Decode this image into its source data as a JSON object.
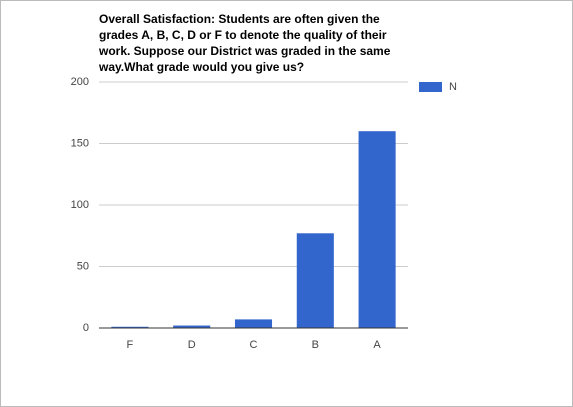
{
  "chart_data": {
    "type": "bar",
    "title": "Overall Satisfaction: Students are often given the grades A, B, C, D or F to denote the quality of their work. Suppose our District was graded in the same way.What grade would you give us?",
    "categories": [
      "F",
      "D",
      "C",
      "B",
      "A"
    ],
    "series": [
      {
        "name": "N",
        "color": "#3366cc",
        "values": [
          1,
          2,
          7,
          77,
          160
        ]
      }
    ],
    "ylim": [
      0,
      200
    ],
    "yticks": [
      0,
      50,
      100,
      150,
      200
    ],
    "grid": true,
    "legend": "right"
  }
}
